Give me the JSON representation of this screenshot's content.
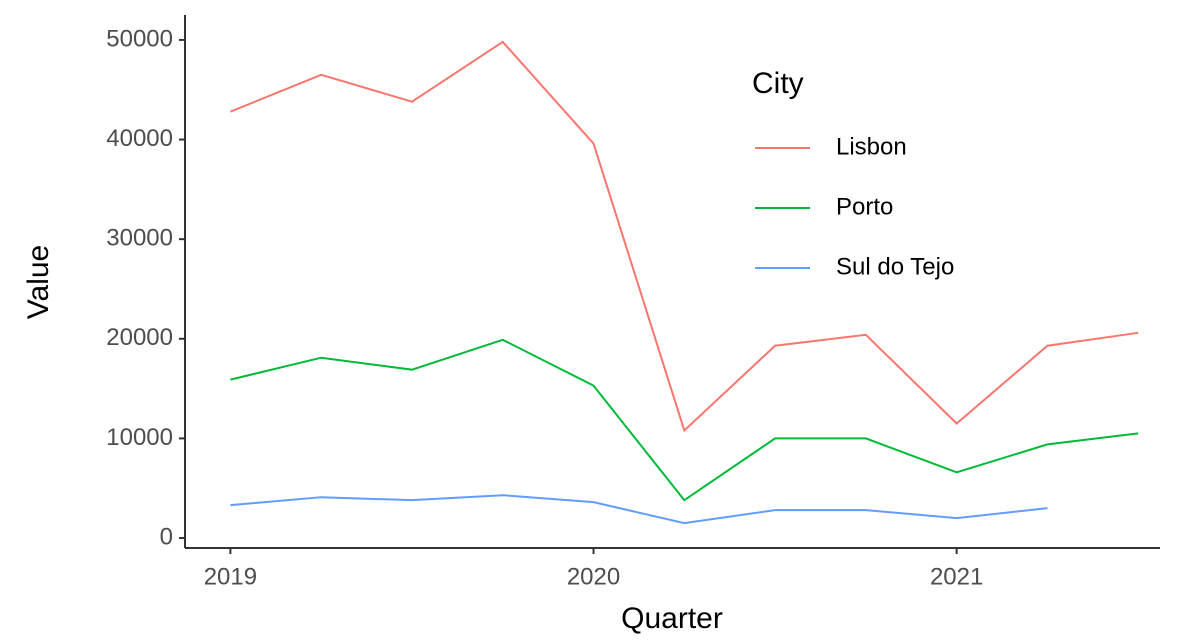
{
  "chart_data": {
    "type": "line",
    "x_label": "Quarter",
    "y_label": "Value",
    "legend_title": "City",
    "x": [
      2019,
      2019.25,
      2019.5,
      2019.75,
      2020,
      2020.25,
      2020.5,
      2020.75,
      2021,
      2021.25,
      2021.5
    ],
    "series": [
      {
        "name": "Lisbon",
        "color": "#F8766D",
        "values": [
          42800,
          46500,
          43800,
          49800,
          39600,
          10800,
          19300,
          20400,
          11500,
          19300,
          20600
        ]
      },
      {
        "name": "Porto",
        "color": "#00BA38",
        "values": [
          15900,
          18100,
          16900,
          19900,
          15300,
          3800,
          10000,
          10000,
          6600,
          9400,
          10500
        ]
      },
      {
        "name": "Sul do Tejo",
        "color": "#619CFF",
        "values": [
          3300,
          4100,
          3800,
          4300,
          3600,
          1500,
          2800,
          2800,
          2000,
          3000,
          null
        ]
      }
    ],
    "xlim": [
      2018.875,
      2021.56
    ],
    "xticks": [
      2019,
      2020,
      2021
    ],
    "ylim": [
      -1000,
      52500
    ],
    "yticks": [
      0,
      10000,
      20000,
      30000,
      40000,
      50000
    ],
    "grid": false,
    "legend_position": "top-right"
  }
}
